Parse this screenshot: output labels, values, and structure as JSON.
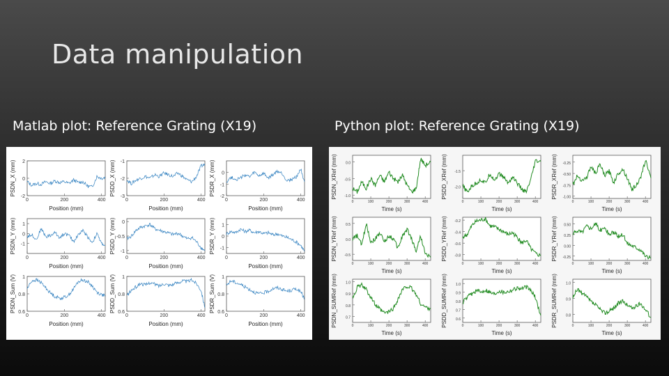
{
  "slide": {
    "title": "Data manipulation",
    "left_caption": "Matlab plot: Reference Grating (X19)",
    "right_caption": "Python plot: Reference Grating (X19)"
  },
  "colors": {
    "matlab_line": "#2f7fbf",
    "python_line": "#1f8a1f"
  },
  "chart_data": [
    {
      "type": "line",
      "name": "matlab-grid",
      "xlabel": "Position (mm)",
      "x_range": [
        0,
        420
      ],
      "x_ticks": [
        "0",
        "200",
        "400"
      ],
      "subplots": [
        {
          "ylabel": "PSDN_X (mm)",
          "ylim": [
            -2,
            2
          ],
          "yticks": [
            "2",
            "0",
            "-2"
          ],
          "x": [
            0,
            25,
            50,
            75,
            100,
            125,
            150,
            175,
            200,
            225,
            250,
            275,
            300,
            325,
            350,
            375,
            400,
            420
          ],
          "y": [
            -0.4,
            -0.8,
            -0.6,
            -0.7,
            -0.4,
            -0.6,
            -0.3,
            -0.5,
            -0.4,
            -0.6,
            -0.2,
            -0.5,
            -0.4,
            -0.9,
            -1.0,
            0.2,
            0.0,
            0.1
          ]
        },
        {
          "ylabel": "PSDD_X (mm)",
          "ylim": [
            -3,
            -1
          ],
          "yticks": [
            "-1",
            "-2",
            "-3"
          ],
          "x": [
            0,
            25,
            50,
            75,
            100,
            125,
            150,
            175,
            200,
            225,
            250,
            275,
            300,
            325,
            350,
            375,
            400,
            420
          ],
          "y": [
            -2.1,
            -2.3,
            -2.1,
            -2.0,
            -1.9,
            -2.0,
            -1.8,
            -1.9,
            -1.7,
            -1.8,
            -1.9,
            -1.7,
            -1.9,
            -2.1,
            -2.2,
            -1.9,
            -1.3,
            -1.2
          ]
        },
        {
          "ylabel": "PSDR_X (mm)",
          "ylim": [
            -2,
            1
          ],
          "yticks": [
            "0",
            "-1",
            "-2"
          ],
          "x": [
            0,
            25,
            50,
            75,
            100,
            125,
            150,
            175,
            200,
            225,
            250,
            275,
            300,
            325,
            350,
            375,
            400,
            420
          ],
          "y": [
            -0.8,
            -0.4,
            -0.6,
            -0.5,
            -0.2,
            -0.4,
            0.0,
            -0.3,
            -0.1,
            -0.5,
            -0.2,
            0.1,
            -0.1,
            -0.7,
            -0.6,
            -0.4,
            0.3,
            -0.8
          ]
        },
        {
          "ylabel": "PSDN_Y (mm)",
          "ylim": [
            -2,
            1.5
          ],
          "yticks": [
            "1",
            "0",
            "-1"
          ],
          "x": [
            0,
            25,
            50,
            75,
            100,
            125,
            150,
            175,
            200,
            225,
            250,
            275,
            300,
            325,
            350,
            375,
            400,
            420
          ],
          "y": [
            -0.3,
            -0.1,
            -0.6,
            0.5,
            -0.3,
            -0.2,
            0.1,
            -0.4,
            0.0,
            -0.2,
            -0.8,
            -0.1,
            0.3,
            -0.3,
            -0.9,
            0.0,
            -1.0,
            -1.2
          ]
        },
        {
          "ylabel": "PSDD_Y (mm)",
          "ylim": [
            -1.1,
            0.1
          ],
          "yticks": [
            "0",
            "-0.5",
            "-1"
          ],
          "x": [
            0,
            25,
            50,
            75,
            100,
            125,
            150,
            175,
            200,
            225,
            250,
            275,
            300,
            325,
            350,
            375,
            400,
            420
          ],
          "y": [
            -0.6,
            -0.5,
            -0.3,
            -0.2,
            -0.15,
            -0.1,
            -0.25,
            -0.3,
            -0.35,
            -0.4,
            -0.45,
            -0.4,
            -0.5,
            -0.6,
            -0.55,
            -0.7,
            -0.9,
            -1.0
          ]
        },
        {
          "ylabel": "PSDR_Y (mm)",
          "ylim": [
            -1.5,
            1.5
          ],
          "yticks": [
            "1",
            "0",
            "-1"
          ],
          "x": [
            0,
            25,
            50,
            75,
            100,
            125,
            150,
            175,
            200,
            225,
            250,
            275,
            300,
            325,
            350,
            375,
            400,
            420
          ],
          "y": [
            0.2,
            0.4,
            0.3,
            0.6,
            0.4,
            0.5,
            0.3,
            0.4,
            0.2,
            0.3,
            0.1,
            0.2,
            0.0,
            -0.1,
            -0.3,
            -0.5,
            -0.8,
            -1.3
          ]
        },
        {
          "ylabel": "PSDN_Sum (V)",
          "ylim": [
            0.6,
            1.0
          ],
          "yticks": [
            "1",
            "0.8",
            "0.6"
          ],
          "x": [
            0,
            25,
            50,
            75,
            100,
            125,
            150,
            175,
            200,
            225,
            250,
            275,
            300,
            325,
            350,
            375,
            400,
            420
          ],
          "y": [
            0.86,
            0.95,
            0.96,
            0.93,
            0.87,
            0.81,
            0.77,
            0.75,
            0.76,
            0.79,
            0.86,
            0.94,
            0.96,
            0.94,
            0.89,
            0.82,
            0.79,
            0.78
          ]
        },
        {
          "ylabel": "PSDD_Sum (V)",
          "ylim": [
            0.6,
            1.0
          ],
          "yticks": [
            "1",
            "0.8",
            "0.6"
          ],
          "x": [
            0,
            25,
            50,
            75,
            100,
            125,
            150,
            175,
            200,
            225,
            250,
            275,
            300,
            325,
            350,
            375,
            400,
            420
          ],
          "y": [
            0.78,
            0.84,
            0.88,
            0.92,
            0.9,
            0.93,
            0.91,
            0.89,
            0.92,
            0.9,
            0.91,
            0.93,
            0.95,
            0.94,
            0.96,
            0.92,
            0.84,
            0.64
          ]
        },
        {
          "ylabel": "PSDR_Sum (V)",
          "ylim": [
            0.6,
            1.0
          ],
          "yticks": [
            "1",
            "0.8",
            "0.6"
          ],
          "x": [
            0,
            25,
            50,
            75,
            100,
            125,
            150,
            175,
            200,
            225,
            250,
            275,
            300,
            325,
            350,
            375,
            400,
            420
          ],
          "y": [
            0.9,
            0.95,
            0.93,
            0.91,
            0.88,
            0.85,
            0.82,
            0.8,
            0.81,
            0.83,
            0.86,
            0.87,
            0.85,
            0.83,
            0.84,
            0.86,
            0.82,
            0.74
          ]
        }
      ]
    },
    {
      "type": "line",
      "name": "python-grid",
      "xlabel": "Time (s)",
      "x_range": [
        0,
        430
      ],
      "x_ticks": [
        "0",
        "100",
        "200",
        "300",
        "400"
      ],
      "subplots": [
        {
          "ylabel": "PSDN_XRef (mm)",
          "ylim": [
            -1.1,
            0.2
          ],
          "yticks": [
            "0.0",
            "-0.5",
            "-1.0"
          ],
          "x": [
            0,
            25,
            50,
            75,
            100,
            125,
            150,
            175,
            200,
            225,
            250,
            275,
            300,
            325,
            350,
            375,
            400,
            430
          ],
          "y": [
            -0.8,
            -0.9,
            -0.6,
            -0.8,
            -0.5,
            -0.7,
            -0.4,
            -0.6,
            -0.3,
            -0.5,
            -0.6,
            -0.4,
            -0.7,
            -0.9,
            -0.8,
            0.1,
            -0.1,
            0.0
          ]
        },
        {
          "ylabel": "PSDD_XRef (mm)",
          "ylim": [
            -2.4,
            -1.0
          ],
          "yticks": [
            "-1.5",
            "-2.0"
          ],
          "x": [
            0,
            25,
            50,
            75,
            100,
            125,
            150,
            175,
            200,
            225,
            250,
            275,
            300,
            325,
            350,
            375,
            400,
            430
          ],
          "y": [
            -2.0,
            -2.2,
            -2.0,
            -1.9,
            -1.8,
            -1.9,
            -1.6,
            -1.8,
            -1.6,
            -1.7,
            -1.9,
            -1.7,
            -1.9,
            -2.1,
            -2.2,
            -1.8,
            -1.2,
            -1.2
          ]
        },
        {
          "ylabel": "PSDR_XRef (mm)",
          "ylim": [
            -1.05,
            -0.1
          ],
          "yticks": [
            "-0.25",
            "-0.50",
            "-0.75",
            "-1.00"
          ],
          "x": [
            0,
            25,
            50,
            75,
            100,
            125,
            150,
            175,
            200,
            225,
            250,
            275,
            300,
            325,
            350,
            375,
            400,
            430
          ],
          "y": [
            -0.75,
            -0.55,
            -0.65,
            -0.6,
            -0.35,
            -0.5,
            -0.3,
            -0.55,
            -0.45,
            -0.7,
            -0.5,
            -0.4,
            -0.6,
            -0.85,
            -0.75,
            -0.6,
            -0.2,
            -0.6
          ]
        },
        {
          "ylabel": "PSDN_YRef (mm)",
          "ylim": [
            -0.7,
            0.7
          ],
          "yticks": [
            "0.5",
            "0.0",
            "-0.5"
          ],
          "x": [
            0,
            25,
            50,
            75,
            100,
            125,
            150,
            175,
            200,
            225,
            250,
            275,
            300,
            325,
            350,
            375,
            400,
            430
          ],
          "y": [
            0.0,
            0.1,
            -0.2,
            0.5,
            -0.1,
            0.0,
            0.2,
            -0.1,
            0.1,
            0.0,
            -0.3,
            0.1,
            0.3,
            0.0,
            -0.4,
            0.1,
            -0.5,
            -0.6
          ]
        },
        {
          "ylabel": "PSDD_YRef (mm)",
          "ylim": [
            -0.9,
            -0.15
          ],
          "yticks": [
            "-0.2",
            "-0.4",
            "-0.6",
            "-0.8"
          ],
          "x": [
            0,
            25,
            50,
            75,
            100,
            125,
            150,
            175,
            200,
            225,
            250,
            275,
            300,
            325,
            350,
            375,
            400,
            430
          ],
          "y": [
            -0.5,
            -0.45,
            -0.3,
            -0.22,
            -0.2,
            -0.18,
            -0.3,
            -0.32,
            -0.36,
            -0.4,
            -0.45,
            -0.42,
            -0.5,
            -0.6,
            -0.55,
            -0.7,
            -0.78,
            -0.82
          ]
        },
        {
          "ylabel": "PSDR_YRef (mm)",
          "ylim": [
            -0.35,
            0.65
          ],
          "yticks": [
            "0.50",
            "0.25",
            "0.00",
            "-0.25"
          ],
          "x": [
            0,
            25,
            50,
            75,
            100,
            125,
            150,
            175,
            200,
            225,
            250,
            275,
            300,
            325,
            350,
            375,
            400,
            430
          ],
          "y": [
            0.25,
            0.35,
            0.3,
            0.45,
            0.4,
            0.5,
            0.35,
            0.4,
            0.25,
            0.3,
            0.2,
            0.25,
            0.05,
            0.0,
            -0.05,
            -0.1,
            -0.25,
            -0.3
          ]
        },
        {
          "ylabel": "PSDN_SUMRef (mm)",
          "ylim": [
            0.65,
            1.02
          ],
          "yticks": [
            "1.0",
            "0.9",
            "0.8",
            "0.7"
          ],
          "x": [
            0,
            25,
            50,
            75,
            100,
            125,
            150,
            175,
            200,
            225,
            250,
            275,
            300,
            325,
            350,
            375,
            400,
            430
          ],
          "y": [
            0.86,
            0.95,
            0.97,
            0.93,
            0.87,
            0.8,
            0.76,
            0.73,
            0.74,
            0.77,
            0.85,
            0.93,
            0.96,
            0.94,
            0.89,
            0.81,
            0.78,
            0.77
          ]
        },
        {
          "ylabel": "PSDD_SUMRef (mm)",
          "ylim": [
            0.55,
            1.05
          ],
          "yticks": [
            "1.0",
            "0.9",
            "0.8",
            "0.7",
            "0.6"
          ],
          "x": [
            0,
            25,
            50,
            75,
            100,
            125,
            150,
            175,
            200,
            225,
            250,
            275,
            300,
            325,
            350,
            375,
            400,
            430
          ],
          "y": [
            0.78,
            0.84,
            0.88,
            0.92,
            0.9,
            0.93,
            0.9,
            0.88,
            0.92,
            0.9,
            0.91,
            0.93,
            0.95,
            0.94,
            0.96,
            0.92,
            0.84,
            0.63
          ]
        },
        {
          "ylabel": "PSDR_SUMRef (mm)",
          "ylim": [
            0.75,
            1.02
          ],
          "yticks": [
            "1.0",
            "0.9",
            "0.8"
          ],
          "x": [
            0,
            25,
            50,
            75,
            100,
            125,
            150,
            175,
            200,
            225,
            250,
            275,
            300,
            325,
            350,
            375,
            400,
            430
          ],
          "y": [
            0.9,
            0.96,
            0.93,
            0.91,
            0.88,
            0.86,
            0.83,
            0.81,
            0.82,
            0.84,
            0.87,
            0.88,
            0.86,
            0.84,
            0.85,
            0.87,
            0.83,
            0.78
          ]
        }
      ]
    }
  ]
}
